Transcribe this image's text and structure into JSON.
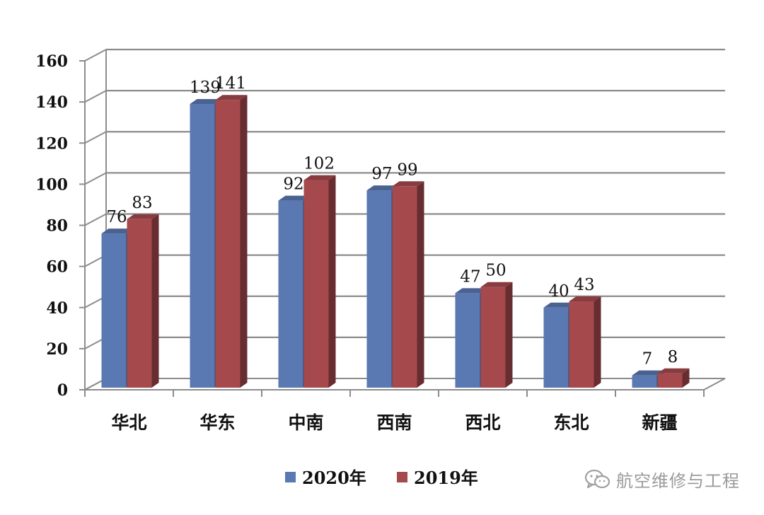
{
  "chart_data": {
    "type": "bar",
    "style": "3d-clustered-column",
    "categories": [
      "华北",
      "华东",
      "中南",
      "西南",
      "西北",
      "东北",
      "新疆"
    ],
    "series": [
      {
        "name": "2020年",
        "values": [
          76,
          139,
          92,
          97,
          47,
          40,
          7
        ],
        "color": "#5a78b1"
      },
      {
        "name": "2019年",
        "values": [
          83,
          141,
          102,
          99,
          50,
          43,
          8
        ],
        "color": "#a6494d"
      }
    ],
    "title": "",
    "xlabel": "",
    "ylabel": "",
    "ylim": [
      0,
      160
    ],
    "yticks": [
      0,
      20,
      40,
      60,
      80,
      100,
      120,
      140,
      160
    ],
    "grid": true,
    "data_labels": true,
    "legend_position": "bottom"
  },
  "watermark": {
    "text": "航空维修与工程",
    "icon": "wechat-icon"
  }
}
